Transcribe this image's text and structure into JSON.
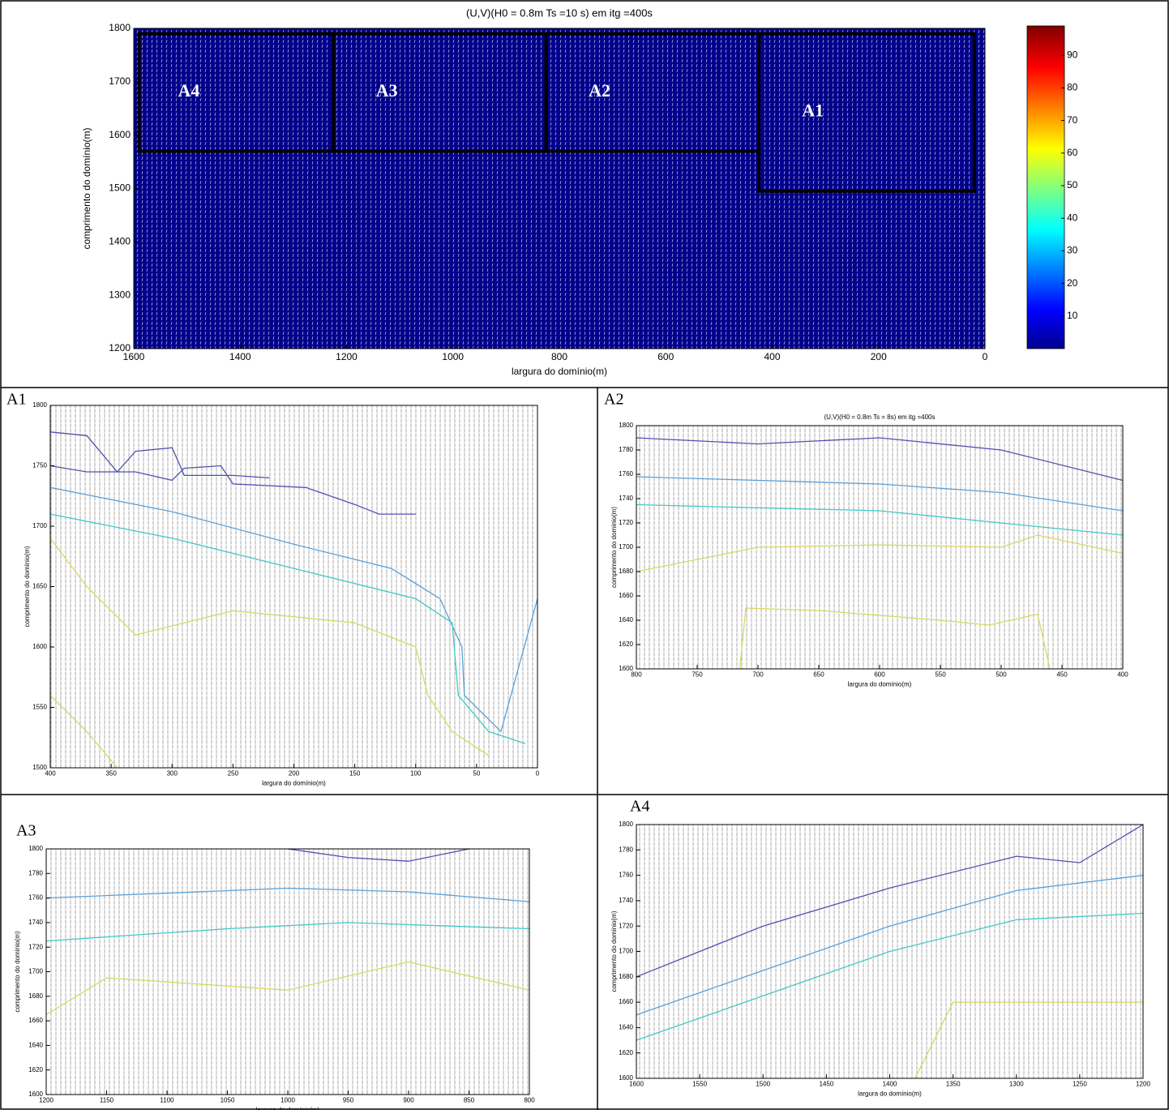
{
  "chart_data": [
    {
      "type": "quiver",
      "title": "(U,V)(H0 = 0.8m Ts =10 s) em itg =400s",
      "xlabel": "largura do domínio(m)",
      "ylabel": "comprimento do domínio(m)",
      "xlim": [
        1600,
        0
      ],
      "ylim": [
        1200,
        1800
      ],
      "xticks": [
        1600,
        1400,
        1200,
        1000,
        800,
        600,
        400,
        200,
        0
      ],
      "yticks": [
        1200,
        1300,
        1400,
        1500,
        1600,
        1700,
        1800
      ],
      "colorbar": {
        "clim": [
          0,
          99
        ],
        "ticks": [
          10,
          20,
          30,
          40,
          50,
          60,
          70,
          80,
          90
        ]
      },
      "regions": [
        {
          "label": "A4",
          "x": [
            1590,
            1225
          ],
          "y": [
            1570,
            1790
          ]
        },
        {
          "label": "A3",
          "x": [
            1225,
            825
          ],
          "y": [
            1570,
            1790
          ]
        },
        {
          "label": "A2",
          "x": [
            825,
            425
          ],
          "y": [
            1570,
            1790
          ]
        },
        {
          "label": "A1",
          "x": [
            425,
            20
          ],
          "y": [
            1495,
            1790
          ]
        }
      ]
    },
    {
      "type": "quiver",
      "label": "A1",
      "xlabel": "largura do domínio(m)",
      "ylabel": "comprimento do domínio(m)",
      "xlim": [
        400,
        0
      ],
      "ylim": [
        1500,
        1800
      ],
      "xticks": [
        400,
        350,
        300,
        250,
        200,
        150,
        100,
        50,
        0
      ],
      "yticks": [
        1500,
        1550,
        1600,
        1650,
        1700,
        1750,
        1800
      ],
      "contours": [
        {
          "color": "#5050b0",
          "x": [
            400,
            370,
            345,
            330,
            300,
            290,
            250,
            220
          ],
          "y": [
            1778,
            1775,
            1745,
            1762,
            1765,
            1742,
            1742,
            1740
          ]
        },
        {
          "color": "#5050b0",
          "x": [
            400,
            370,
            330,
            300,
            290,
            260,
            250,
            190,
            150,
            130,
            100
          ],
          "y": [
            1750,
            1745,
            1745,
            1738,
            1748,
            1750,
            1735,
            1732,
            1718,
            1710,
            1710
          ]
        },
        {
          "color": "#5aa0d8",
          "x": [
            400,
            300,
            200,
            120,
            80,
            62,
            60,
            30,
            0
          ],
          "y": [
            1732,
            1712,
            1685,
            1665,
            1640,
            1600,
            1560,
            1530,
            1640
          ]
        },
        {
          "color": "#40c8c8",
          "x": [
            400,
            300,
            200,
            100,
            70,
            65,
            40,
            10
          ],
          "y": [
            1710,
            1690,
            1665,
            1640,
            1620,
            1560,
            1530,
            1520
          ]
        },
        {
          "color": "#d8d860",
          "x": [
            400,
            370,
            330,
            250,
            150,
            100,
            90,
            70,
            40
          ],
          "y": [
            1690,
            1650,
            1610,
            1630,
            1620,
            1600,
            1560,
            1530,
            1510
          ]
        },
        {
          "color": "#d8d860",
          "x": [
            400,
            370,
            345
          ],
          "y": [
            1560,
            1530,
            1500
          ]
        }
      ]
    },
    {
      "type": "quiver",
      "label": "A2",
      "title": "(U,V)(H0 = 0.8m Ts = 8s) em itg =400s",
      "xlabel": "largura do domínio(m)",
      "ylabel": "comprimento do domínio(m)",
      "xlim": [
        800,
        400
      ],
      "ylim": [
        1600,
        1800
      ],
      "xticks": [
        800,
        750,
        700,
        650,
        600,
        550,
        500,
        450,
        400
      ],
      "yticks": [
        1600,
        1620,
        1640,
        1660,
        1680,
        1700,
        1720,
        1740,
        1760,
        1780,
        1800
      ],
      "contours": [
        {
          "color": "#5050b0",
          "x": [
            800,
            700,
            600,
            500,
            400
          ],
          "y": [
            1790,
            1785,
            1790,
            1780,
            1755
          ]
        },
        {
          "color": "#5aa0d8",
          "x": [
            800,
            600,
            500,
            400
          ],
          "y": [
            1758,
            1752,
            1745,
            1730
          ]
        },
        {
          "color": "#40c8c8",
          "x": [
            800,
            600,
            400
          ],
          "y": [
            1735,
            1730,
            1710
          ]
        },
        {
          "color": "#d8d860",
          "x": [
            800,
            700,
            600,
            500,
            470,
            400
          ],
          "y": [
            1680,
            1700,
            1702,
            1700,
            1710,
            1695
          ]
        },
        {
          "color": "#d8d860",
          "x": [
            715,
            710,
            650,
            550,
            510,
            470,
            460
          ],
          "y": [
            1600,
            1650,
            1648,
            1640,
            1636,
            1645,
            1600
          ]
        }
      ]
    },
    {
      "type": "quiver",
      "label": "A3",
      "xlabel": "largura do domínio(m)",
      "ylabel": "comprimento do domínio(m)",
      "xlim": [
        1200,
        800
      ],
      "ylim": [
        1600,
        1800
      ],
      "xticks": [
        1200,
        1150,
        1100,
        1050,
        1000,
        950,
        900,
        850,
        800
      ],
      "yticks": [
        1600,
        1620,
        1640,
        1660,
        1680,
        1700,
        1720,
        1740,
        1760,
        1780,
        1800
      ],
      "contours": [
        {
          "color": "#5050b0",
          "x": [
            1000,
            950,
            900,
            850
          ],
          "y": [
            1800,
            1793,
            1790,
            1800
          ]
        },
        {
          "color": "#5aa0d8",
          "x": [
            1200,
            1000,
            900,
            800
          ],
          "y": [
            1760,
            1768,
            1765,
            1757
          ]
        },
        {
          "color": "#40c8c8",
          "x": [
            1200,
            1050,
            950,
            800
          ],
          "y": [
            1725,
            1735,
            1740,
            1735
          ]
        },
        {
          "color": "#d8d860",
          "x": [
            1200,
            1150,
            1000,
            900,
            800
          ],
          "y": [
            1665,
            1695,
            1685,
            1708,
            1685
          ]
        }
      ]
    },
    {
      "type": "quiver",
      "label": "A4",
      "xlabel": "largura do domínio(m)",
      "ylabel": "comprimento do domínio(m)",
      "xlim": [
        1600,
        1200
      ],
      "ylim": [
        1600,
        1800
      ],
      "xticks": [
        1600,
        1550,
        1500,
        1450,
        1400,
        1350,
        1300,
        1250,
        1200
      ],
      "yticks": [
        1600,
        1620,
        1640,
        1660,
        1680,
        1700,
        1720,
        1740,
        1760,
        1780,
        1800
      ],
      "contours": [
        {
          "color": "#5050b0",
          "x": [
            1600,
            1500,
            1400,
            1300,
            1250,
            1200
          ],
          "y": [
            1680,
            1720,
            1750,
            1775,
            1770,
            1800
          ]
        },
        {
          "color": "#5aa0d8",
          "x": [
            1600,
            1500,
            1400,
            1300,
            1200
          ],
          "y": [
            1650,
            1685,
            1720,
            1748,
            1760
          ]
        },
        {
          "color": "#40c8c8",
          "x": [
            1600,
            1500,
            1400,
            1300,
            1200
          ],
          "y": [
            1630,
            1665,
            1700,
            1725,
            1730
          ]
        },
        {
          "color": "#d8d860",
          "x": [
            1380,
            1350,
            1200
          ],
          "y": [
            1600,
            1660,
            1660
          ]
        }
      ]
    }
  ]
}
